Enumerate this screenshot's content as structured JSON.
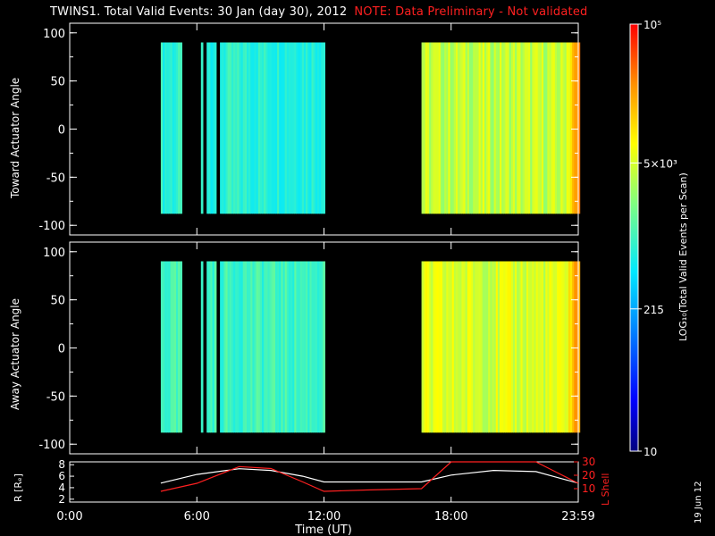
{
  "header": {
    "title": "TWINS1. Total Valid Events: 30 Jan (day  30), 2012",
    "note": "NOTE: Data Preliminary - Not validated"
  },
  "panels": {
    "top": {
      "ylabel": "Toward Actuator Angle"
    },
    "bottom": {
      "ylabel": "Away Actuator Angle"
    },
    "orbit": {
      "ylabel_left": "R [Rₑ]",
      "ylabel_right": "L Shell"
    }
  },
  "colorbar": {
    "label": "LOG₁₀(Total Valid Events per Scan)",
    "ticks": [
      "10⁵",
      "5×10³",
      "215",
      "10"
    ]
  },
  "xaxis": {
    "label": "Time (UT)"
  },
  "stamp": "19 Jun 12",
  "colors": {
    "note": "#ff2020",
    "lshell": "#ff2020",
    "radius": "#ffffff",
    "frame": "#ffffff"
  },
  "chart_data": [
    {
      "type": "heatmap",
      "panel": "top",
      "xlabel": "Time (UT)",
      "ylabel": "Toward Actuator Angle",
      "x_ticks": [
        "0:00",
        "6:00",
        "12:00",
        "18:00",
        "23:59"
      ],
      "y_ticks": [
        100,
        50,
        0,
        -50,
        -100
      ],
      "xlim_hours": [
        0,
        24
      ],
      "ylim": [
        -110,
        110
      ],
      "data_y_range": [
        -88,
        90
      ],
      "data_intervals_hours": [
        [
          4.3,
          12.0
        ],
        [
          16.6,
          24.0
        ]
      ],
      "log_counts_typical": {
        "first_interval": 2.9,
        "second_interval": 3.6,
        "end_of_day": 4.5
      }
    },
    {
      "type": "heatmap",
      "panel": "bottom",
      "xlabel": "Time (UT)",
      "ylabel": "Away Actuator Angle",
      "x_ticks": [
        "0:00",
        "6:00",
        "12:00",
        "18:00",
        "23:59"
      ],
      "y_ticks": [
        100,
        50,
        0,
        -50,
        -100
      ],
      "xlim_hours": [
        0,
        24
      ],
      "ylim": [
        -110,
        110
      ],
      "data_y_range": [
        -88,
        90
      ],
      "data_intervals_hours": [
        [
          4.3,
          12.0
        ],
        [
          16.6,
          24.0
        ]
      ],
      "log_counts_typical": {
        "first_interval": 3.0,
        "second_interval": 3.7,
        "end_of_day": 4.5
      }
    },
    {
      "type": "line",
      "panel": "orbit",
      "xlabel": "Time (UT)",
      "x_ticks": [
        "0:00",
        "6:00",
        "12:00",
        "18:00",
        "23:59"
      ],
      "left_ylabel": "R [Rₑ]",
      "left_ticks": [
        2,
        4,
        6,
        8
      ],
      "left_ylim": [
        1.5,
        8.5
      ],
      "right_ylabel": "L Shell",
      "right_ticks": [
        10,
        20,
        30
      ],
      "right_ylim": [
        0,
        30
      ],
      "series": [
        {
          "axis": "left",
          "x": [
            4.3,
            6,
            8,
            9.5,
            11,
            12,
            14,
            16.6,
            18,
            20,
            22,
            23,
            24
          ],
          "y": [
            4.8,
            6.3,
            7.3,
            7.0,
            6.0,
            5.0,
            5.0,
            5.0,
            6.2,
            7.0,
            6.8,
            5.8,
            4.8
          ]
        },
        {
          "axis": "right",
          "x": [
            4.3,
            6,
            8,
            9.5,
            11,
            12,
            14,
            16.6,
            18,
            20,
            22,
            23,
            24
          ],
          "y": [
            8.0,
            14.0,
            26.5,
            25.0,
            15.0,
            8.0,
            9.0,
            10.0,
            30,
            30,
            30,
            22,
            14
          ]
        }
      ]
    }
  ]
}
